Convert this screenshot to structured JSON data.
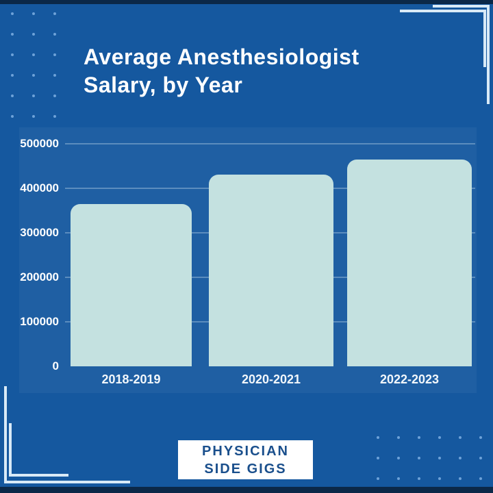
{
  "title": "Average Anesthesiologist Salary, by Year",
  "title_lines": [
    "Average Anesthesiologist",
    "Salary, by Year"
  ],
  "badge": {
    "line1": "PHYSICIAN",
    "line2": "SIDE GIGS"
  },
  "colors": {
    "background": "#15589F",
    "edge_strip": "#0B2848",
    "bar_fill": "#C4E1E0",
    "title_text": "#FFFFFF",
    "axis_text": "#FFFFFF",
    "gridline": "rgba(222,238,250,0.32)",
    "badge_bg": "#FFFFFF",
    "badge_text": "#1A4F8C",
    "bracket": "#D9EAF7",
    "dot": "#6EA2D8"
  },
  "chart_data": {
    "type": "bar",
    "title": "Average Anesthesiologist Salary, by Year",
    "categories": [
      "2018-2019",
      "2020-2021",
      "2022-2023"
    ],
    "values": [
      365000,
      430000,
      465000
    ],
    "xlabel": "",
    "ylabel": "",
    "ylim": [
      0,
      500000
    ],
    "yticks": [
      0,
      100000,
      200000,
      300000,
      400000,
      500000
    ],
    "ytick_labels": [
      "0",
      "100000",
      "200000",
      "300000",
      "400000",
      "500000"
    ],
    "grid": true,
    "legend": false,
    "bar_corner": "rounded-top"
  }
}
